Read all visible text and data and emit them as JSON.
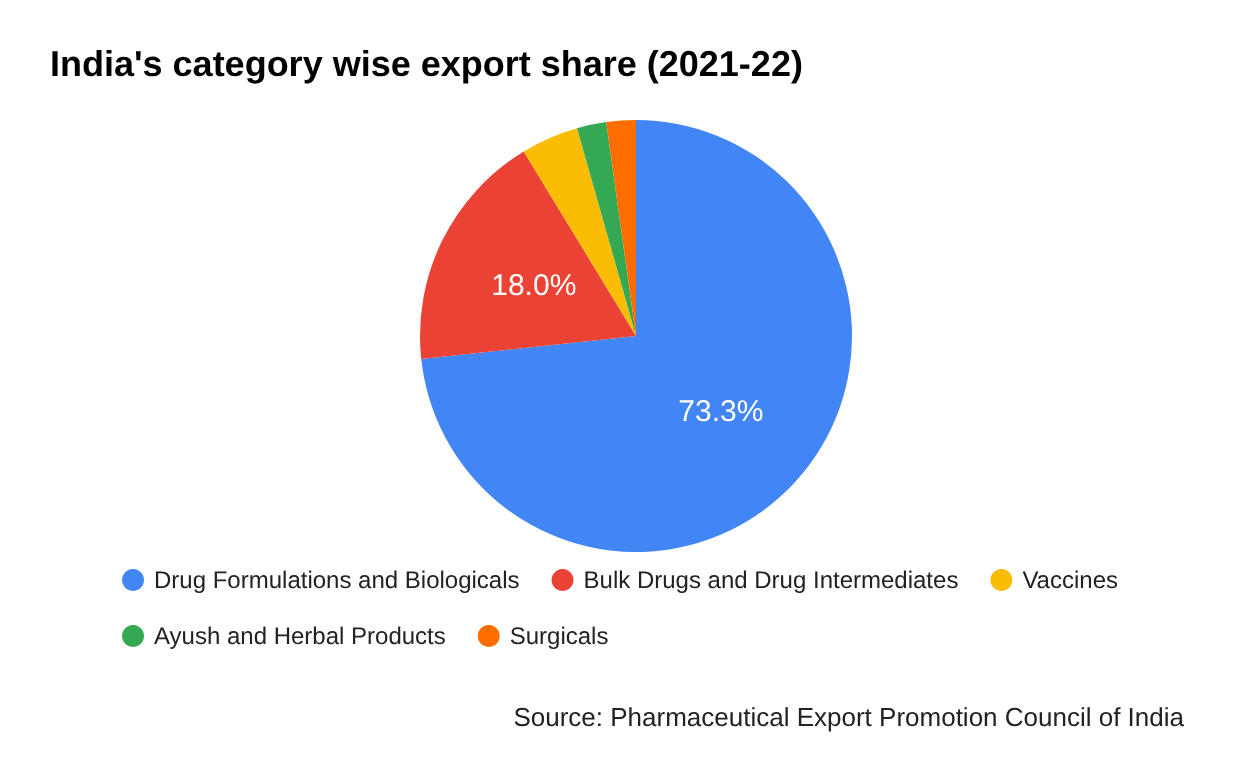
{
  "chart_data": {
    "type": "pie",
    "title": "India's category wise export share (2021-22)",
    "categories": [
      "Drug Formulations and Biologicals",
      "Bulk Drugs and Drug Intermediates",
      "Vaccines",
      "Ayush and Herbal Products",
      "Surgicals"
    ],
    "values": [
      73.3,
      18.0,
      4.3,
      2.2,
      2.2
    ],
    "colors": [
      "#4285f4",
      "#ea4335",
      "#fbbc04",
      "#34a853",
      "#ff6d01"
    ],
    "value_labels": [
      "73.3%",
      "18.0%",
      null,
      null,
      null
    ],
    "legend": "bottom",
    "annotations": [
      "Source: Pharmaceutical Export Promotion Council of India"
    ]
  }
}
